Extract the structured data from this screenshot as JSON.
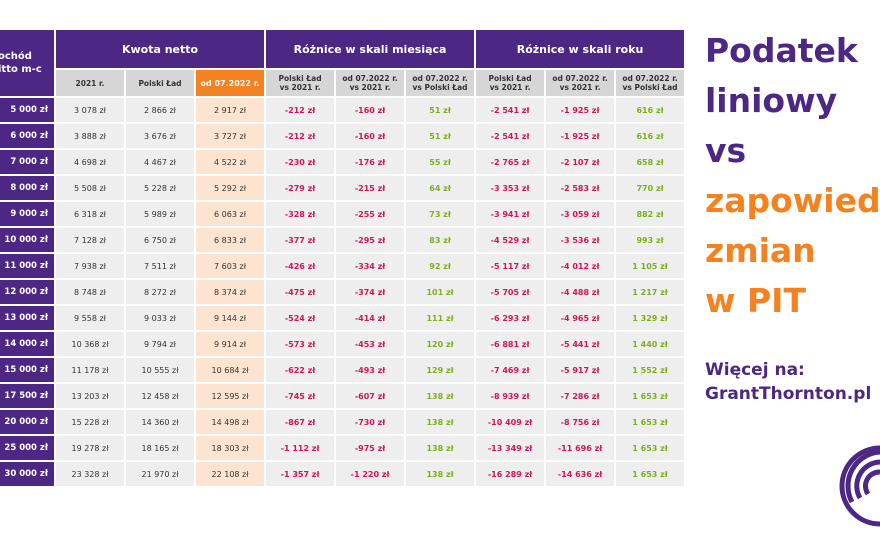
{
  "header": {
    "income_label": "ochód\nitto m-c",
    "group1": "Kwota netto",
    "group2": "Różnice w skali miesiąca",
    "group3": "Różnice w skali roku"
  },
  "subheaders": [
    "2021 r.",
    "Polski Ład",
    "od 07.2022 r.",
    "Polski Ład\nvs 2021 r.",
    "od 07.2022 r.\nvs 2021 r.",
    "od 07.2022 r.\nvs Polski Ład",
    "Polski Ład\nvs 2021 r.",
    "od 07.2022 r.\nvs 2021 r.",
    "od 07.2022 r.\nvs Polski Ład"
  ],
  "rows": [
    {
      "income": "5 000 zł",
      "cells": [
        "3 078 zł",
        "2 866 zł",
        "2 917 zł",
        "-212 zł",
        "-160 zł",
        "51 zł",
        "-2 541 zł",
        "-1 925 zł",
        "616 zł"
      ]
    },
    {
      "income": "6 000 zł",
      "cells": [
        "3 888 zł",
        "3 676 zł",
        "3 727 zł",
        "-212 zł",
        "-160 zł",
        "51 zł",
        "-2 541 zł",
        "-1 925 zł",
        "616 zł"
      ]
    },
    {
      "income": "7 000 zł",
      "cells": [
        "4 698 zł",
        "4 467 zł",
        "4 522 zł",
        "-230 zł",
        "-176 zł",
        "55 zł",
        "-2 765 zł",
        "-2 107 zł",
        "658 zł"
      ]
    },
    {
      "income": "8 000 zł",
      "cells": [
        "5 508 zł",
        "5 228 zł",
        "5 292 zł",
        "-279 zł",
        "-215 zł",
        "64 zł",
        "-3 353 zł",
        "-2 583 zł",
        "770 zł"
      ]
    },
    {
      "income": "9 000 zł",
      "cells": [
        "6 318 zł",
        "5 989 zł",
        "6 063 zł",
        "-328 zł",
        "-255 zł",
        "73 zł",
        "-3 941 zł",
        "-3 059 zł",
        "882 zł"
      ]
    },
    {
      "income": "10 000 zł",
      "cells": [
        "7 128 zł",
        "6 750 zł",
        "6 833 zł",
        "-377 zł",
        "-295 zł",
        "83 zł",
        "-4 529 zł",
        "-3 536 zł",
        "993 zł"
      ]
    },
    {
      "income": "11 000 zł",
      "cells": [
        "7 938 zł",
        "7 511 zł",
        "7 603 zł",
        "-426 zł",
        "-334 zł",
        "92 zł",
        "-5 117 zł",
        "-4 012 zł",
        "1 105 zł"
      ]
    },
    {
      "income": "12 000 zł",
      "cells": [
        "8 748 zł",
        "8 272 zł",
        "8 374 zł",
        "-475 zł",
        "-374 zł",
        "101 zł",
        "-5 705 zł",
        "-4 488 zł",
        "1 217 zł"
      ]
    },
    {
      "income": "13 000 zł",
      "cells": [
        "9 558 zł",
        "9 033 zł",
        "9 144 zł",
        "-524 zł",
        "-414 zł",
        "111 zł",
        "-6 293 zł",
        "-4 965 zł",
        "1 329 zł"
      ]
    },
    {
      "income": "14 000 zł",
      "cells": [
        "10 368 zł",
        "9 794 zł",
        "9 914 zł",
        "-573 zł",
        "-453 zł",
        "120 zł",
        "-6 881 zł",
        "-5 441 zł",
        "1 440 zł"
      ]
    },
    {
      "income": "15 000 zł",
      "cells": [
        "11 178 zł",
        "10 555 zł",
        "10 684 zł",
        "-622 zł",
        "-493 zł",
        "129 zł",
        "-7 469 zł",
        "-5 917 zł",
        "1 552 zł"
      ]
    },
    {
      "income": "17 500 zł",
      "cells": [
        "13 203 zł",
        "12 458 zł",
        "12 595 zł",
        "-745 zł",
        "-607 zł",
        "138 zł",
        "-8 939 zł",
        "-7 286 zł",
        "1 653 zł"
      ]
    },
    {
      "income": "20 000 zł",
      "cells": [
        "15 228 zł",
        "14 360 zł",
        "14 498 zł",
        "-867 zł",
        "-730 zł",
        "138 zł",
        "-10 409 zł",
        "-8 756 zł",
        "1 653 zł"
      ]
    },
    {
      "income": "25 000 zł",
      "cells": [
        "19 278 zł",
        "18 165 zł",
        "18 303 zł",
        "-1 112 zł",
        "-975 zł",
        "138 zł",
        "-13 349 zł",
        "-11 696 zł",
        "1 653 zł"
      ]
    },
    {
      "income": "30 000 zł",
      "cells": [
        "23 328 zł",
        "21 970 zł",
        "22 108 zł",
        "-1 357 zł",
        "-1 220 zł",
        "138 zł",
        "-16 289 zł",
        "-14 636 zł",
        "1 653 zł"
      ]
    }
  ],
  "side": {
    "lines": [
      {
        "text": "Podatek",
        "color": "purple"
      },
      {
        "text": "liniowy",
        "color": "purple"
      },
      {
        "text": "vs",
        "color": "purple"
      },
      {
        "text": "zapowied",
        "color": "orange"
      },
      {
        "text": "zmian",
        "color": "orange"
      },
      {
        "text": "w PIT",
        "color": "orange"
      }
    ],
    "more_label": "Więcej na:",
    "more_link": "GrantThornton.pl"
  },
  "colors": {
    "purple": "#4c2784",
    "orange": "#f58220",
    "negative": "#d4145a",
    "positive": "#79b11c"
  },
  "logo": {
    "icon": "grant-thornton-logo-icon"
  }
}
